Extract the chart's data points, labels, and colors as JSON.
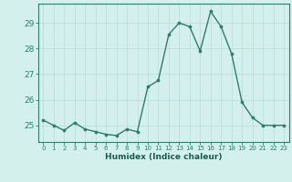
{
  "x": [
    0,
    1,
    2,
    3,
    4,
    5,
    6,
    7,
    8,
    9,
    10,
    11,
    12,
    13,
    14,
    15,
    16,
    17,
    18,
    19,
    20,
    21,
    22,
    23
  ],
  "y": [
    25.2,
    25.0,
    24.8,
    25.1,
    24.85,
    24.75,
    24.65,
    24.6,
    24.85,
    24.75,
    26.5,
    26.75,
    28.55,
    29.0,
    28.85,
    27.9,
    29.45,
    28.85,
    27.8,
    25.9,
    25.3,
    25.0,
    25.0,
    25.0
  ],
  "ylim": [
    24.35,
    29.75
  ],
  "yticks": [
    25,
    26,
    27,
    28,
    29
  ],
  "xtick_labels": [
    "0",
    "1",
    "2",
    "3",
    "4",
    "5",
    "6",
    "7",
    "8",
    "9",
    "10",
    "11",
    "12",
    "13",
    "14",
    "15",
    "16",
    "17",
    "18",
    "19",
    "20",
    "21",
    "22",
    "23"
  ],
  "xlabel": "Humidex (Indice chaleur)",
  "line_color": "#2e7d6e",
  "marker_color": "#2e7d6e",
  "bg_color": "#d4f0ec",
  "grid_color": "#b8ddd8",
  "axes_color": "#2e7d6e",
  "tick_color": "#2e7d6e",
  "label_color": "#1a5c50"
}
